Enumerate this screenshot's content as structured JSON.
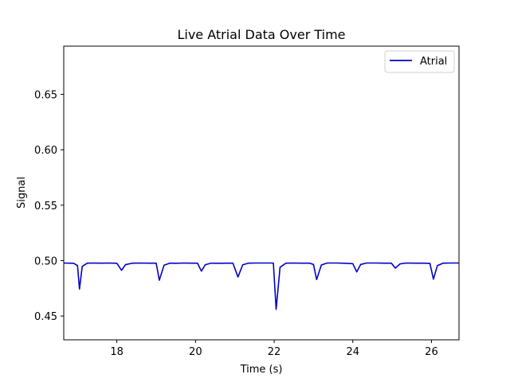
{
  "chart_data": {
    "type": "line",
    "title": "Live Atrial Data Over Time",
    "xlabel": "Time (s)",
    "ylabel": "Signal",
    "xlim": [
      16.65,
      26.7
    ],
    "ylim": [
      0.4285,
      0.6935
    ],
    "xticks": [
      18,
      20,
      22,
      24,
      26
    ],
    "xtick_labels": [
      "18",
      "20",
      "22",
      "24",
      "26"
    ],
    "yticks": [
      0.45,
      0.5,
      0.55,
      0.6,
      0.65
    ],
    "ytick_labels": [
      "0.45",
      "0.50",
      "0.55",
      "0.60",
      "0.65"
    ],
    "grid": false,
    "legend_position": "top-right",
    "series": [
      {
        "name": "Atrial",
        "color": "#0000cc",
        "x": [
          16.65,
          16.9,
          17.0,
          17.05,
          17.12,
          17.25,
          17.4,
          17.6,
          17.8,
          18.0,
          18.12,
          18.22,
          18.4,
          18.6,
          18.8,
          19.0,
          19.08,
          19.2,
          19.35,
          19.5,
          19.7,
          19.9,
          20.05,
          20.15,
          20.25,
          20.4,
          20.6,
          20.8,
          20.95,
          21.08,
          21.2,
          21.35,
          21.5,
          21.7,
          21.9,
          21.98,
          22.05,
          22.15,
          22.3,
          22.5,
          22.7,
          22.9,
          23.0,
          23.08,
          23.2,
          23.35,
          23.6,
          23.8,
          24.0,
          24.1,
          24.2,
          24.35,
          24.6,
          24.8,
          24.98,
          25.08,
          25.2,
          25.35,
          25.6,
          25.8,
          25.96,
          26.05,
          26.15,
          26.3,
          26.5,
          26.7
        ],
        "y": [
          0.4978,
          0.4976,
          0.4955,
          0.4743,
          0.4948,
          0.4977,
          0.4978,
          0.4977,
          0.4978,
          0.4976,
          0.4912,
          0.4963,
          0.4977,
          0.4978,
          0.4977,
          0.4977,
          0.4823,
          0.4958,
          0.4977,
          0.4976,
          0.4978,
          0.4977,
          0.4977,
          0.4905,
          0.4963,
          0.4977,
          0.4976,
          0.4977,
          0.4977,
          0.4852,
          0.4962,
          0.4977,
          0.4978,
          0.4978,
          0.4978,
          0.4978,
          0.456,
          0.494,
          0.4977,
          0.4978,
          0.4977,
          0.4977,
          0.4965,
          0.4829,
          0.496,
          0.4978,
          0.4978,
          0.4976,
          0.4972,
          0.4898,
          0.4965,
          0.4978,
          0.4978,
          0.4977,
          0.4977,
          0.4932,
          0.497,
          0.4978,
          0.4977,
          0.4977,
          0.4975,
          0.4832,
          0.4955,
          0.4977,
          0.4978,
          0.4978
        ]
      }
    ]
  }
}
